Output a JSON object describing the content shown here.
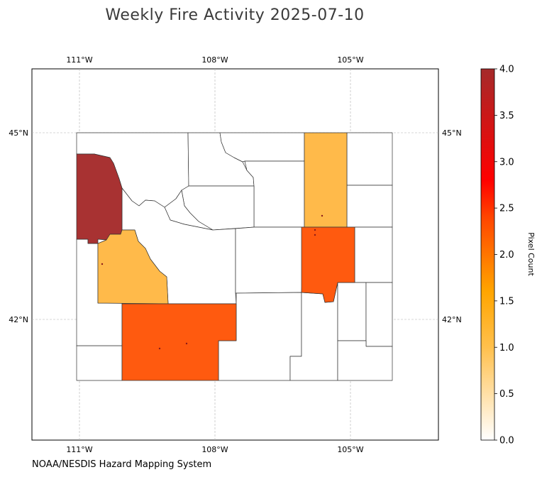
{
  "title": "Weekly Fire Activity 2025-07-10",
  "credit": "NOAA/NESDIS Hazard Mapping System",
  "colorbar": {
    "label": "Pixel Count",
    "min": 0,
    "max": 4,
    "ticks": [
      "0.0",
      "0.5",
      "1.0",
      "1.5",
      "2.0",
      "2.5",
      "3.0",
      "3.5",
      "4.0"
    ],
    "stops": [
      {
        "offset": 0.0,
        "color": "#ffffff"
      },
      {
        "offset": 0.25,
        "color": "#ffc04d"
      },
      {
        "offset": 0.4,
        "color": "#ffa500"
      },
      {
        "offset": 0.6,
        "color": "#ff4500"
      },
      {
        "offset": 0.7,
        "color": "#ff0000"
      },
      {
        "offset": 1.0,
        "color": "#a52a2a"
      }
    ]
  },
  "axes": {
    "lon_ticks": [
      "111°W",
      "108°W",
      "105°W"
    ],
    "lat_ticks": [
      "45°N",
      "42°N"
    ],
    "gridlines": true
  },
  "regions": [
    {
      "id": "county-teton",
      "value": 4,
      "color": "#a83232"
    },
    {
      "id": "county-lincoln",
      "value": 1,
      "color": "#ffba4a"
    },
    {
      "id": "county-sweetwater",
      "value": 2,
      "color": "#ff5a0f"
    },
    {
      "id": "county-campbell",
      "value": 1,
      "color": "#ffba4a"
    },
    {
      "id": "county-converse",
      "value": 2,
      "color": "#ff5a0f"
    }
  ],
  "boundary_color": "#333333"
}
